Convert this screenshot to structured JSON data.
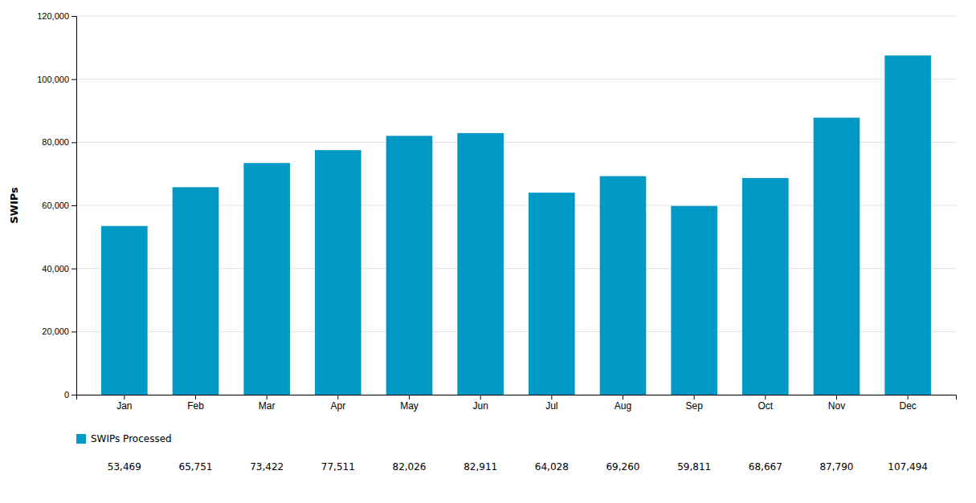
{
  "chart_data": {
    "type": "bar",
    "categories": [
      "Jan",
      "Feb",
      "Mar",
      "Apr",
      "May",
      "Jun",
      "Jul",
      "Aug",
      "Sep",
      "Oct",
      "Nov",
      "Dec"
    ],
    "series": [
      {
        "name": "SWIPs Processed",
        "color": "#0099c6",
        "values": [
          53469,
          65751,
          73422,
          77511,
          82026,
          82911,
          64028,
          69260,
          59811,
          68667,
          87790,
          107494
        ],
        "value_labels": [
          "53,469",
          "65,751",
          "73,422",
          "77,511",
          "82,026",
          "82,911",
          "64,028",
          "69,260",
          "59,811",
          "68,667",
          "87,790",
          "107,494"
        ]
      }
    ],
    "ylabel": "SWIPs",
    "ylim": [
      0,
      120000
    ],
    "yticks": [
      0,
      {
        "value": 20000,
        "label": "20,000"
      },
      {
        "value": 40000,
        "label": "40,000"
      },
      {
        "value": 60000,
        "label": "60,000"
      },
      {
        "value": 80000,
        "label": "80,000"
      },
      {
        "value": 100000,
        "label": "100,000"
      },
      {
        "value": 120000,
        "label": "120,000"
      }
    ],
    "grid": true,
    "legend": "bottom-left",
    "data_labels": true
  }
}
